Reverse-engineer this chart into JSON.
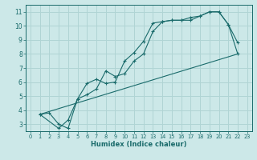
{
  "xlabel": "Humidex (Indice chaleur)",
  "bg_color": "#cce8e8",
  "grid_color": "#b0d4d4",
  "line_color": "#1a6b6b",
  "xlim": [
    -0.5,
    23.5
  ],
  "ylim": [
    2.5,
    11.5
  ],
  "xtick_labels": [
    "0",
    "1",
    "2",
    "3",
    "4",
    "5",
    "6",
    "7",
    "8",
    "9",
    "10",
    "11",
    "12",
    "13",
    "14",
    "15",
    "16",
    "17",
    "18",
    "19",
    "20",
    "21",
    "22",
    "23"
  ],
  "xtick_vals": [
    0,
    1,
    2,
    3,
    4,
    5,
    6,
    7,
    8,
    9,
    10,
    11,
    12,
    13,
    14,
    15,
    16,
    17,
    18,
    19,
    20,
    21,
    22,
    23
  ],
  "ytick_vals": [
    3,
    4,
    5,
    6,
    7,
    8,
    9,
    10,
    11
  ],
  "line_upper": {
    "x": [
      1,
      2,
      3,
      4,
      5,
      6,
      7,
      8,
      9,
      10,
      11,
      12,
      13,
      14,
      15,
      16,
      17,
      18,
      19,
      20,
      21,
      22
    ],
    "y": [
      3.7,
      3.8,
      3.0,
      2.7,
      4.8,
      5.1,
      5.5,
      6.8,
      6.4,
      6.6,
      7.5,
      8.0,
      9.6,
      10.3,
      10.4,
      10.4,
      10.6,
      10.7,
      11.0,
      11.0,
      10.1,
      8.8
    ]
  },
  "line_lower": {
    "x": [
      1,
      3,
      4,
      5,
      6,
      7,
      8,
      9,
      10,
      11,
      12,
      13,
      14,
      15,
      16,
      17,
      18,
      19,
      20,
      21,
      22
    ],
    "y": [
      3.7,
      2.7,
      3.3,
      4.8,
      5.9,
      6.2,
      5.9,
      6.0,
      7.5,
      8.1,
      8.9,
      10.2,
      10.3,
      10.4,
      10.4,
      10.4,
      10.7,
      11.0,
      11.0,
      10.1,
      8.0
    ]
  },
  "line_diag": {
    "x": [
      1,
      22
    ],
    "y": [
      3.7,
      8.0
    ]
  }
}
